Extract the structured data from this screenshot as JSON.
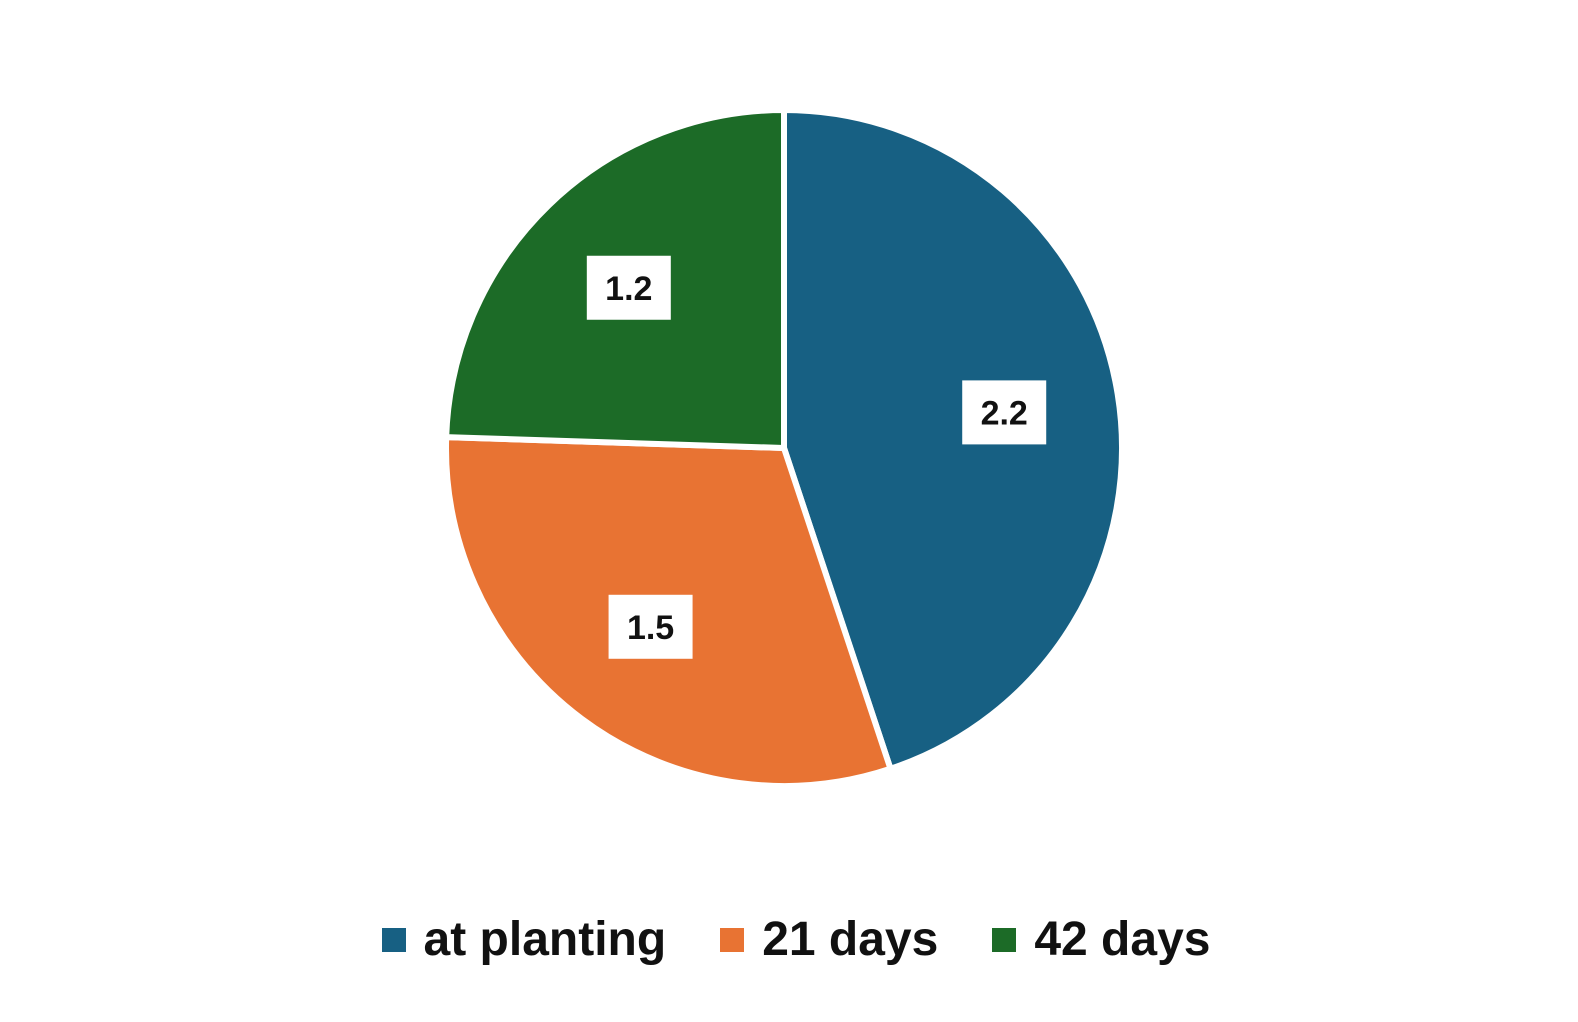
{
  "chart_data": {
    "type": "pie",
    "title": "",
    "categories": [
      "at planting",
      "21 days",
      "42 days"
    ],
    "values": [
      2.2,
      1.5,
      1.2
    ],
    "data_labels": [
      "2.2",
      "1.5",
      "1.2"
    ],
    "colors": [
      "#176083",
      "#E87333",
      "#1C6B27"
    ],
    "start_angle_deg": 0,
    "direction": "clockwise",
    "legend_position": "bottom"
  },
  "legend": {
    "items": [
      {
        "label": "at planting",
        "color": "#176083"
      },
      {
        "label": "21 days",
        "color": "#E87333"
      },
      {
        "label": "42 days",
        "color": "#1C6B27"
      }
    ]
  }
}
